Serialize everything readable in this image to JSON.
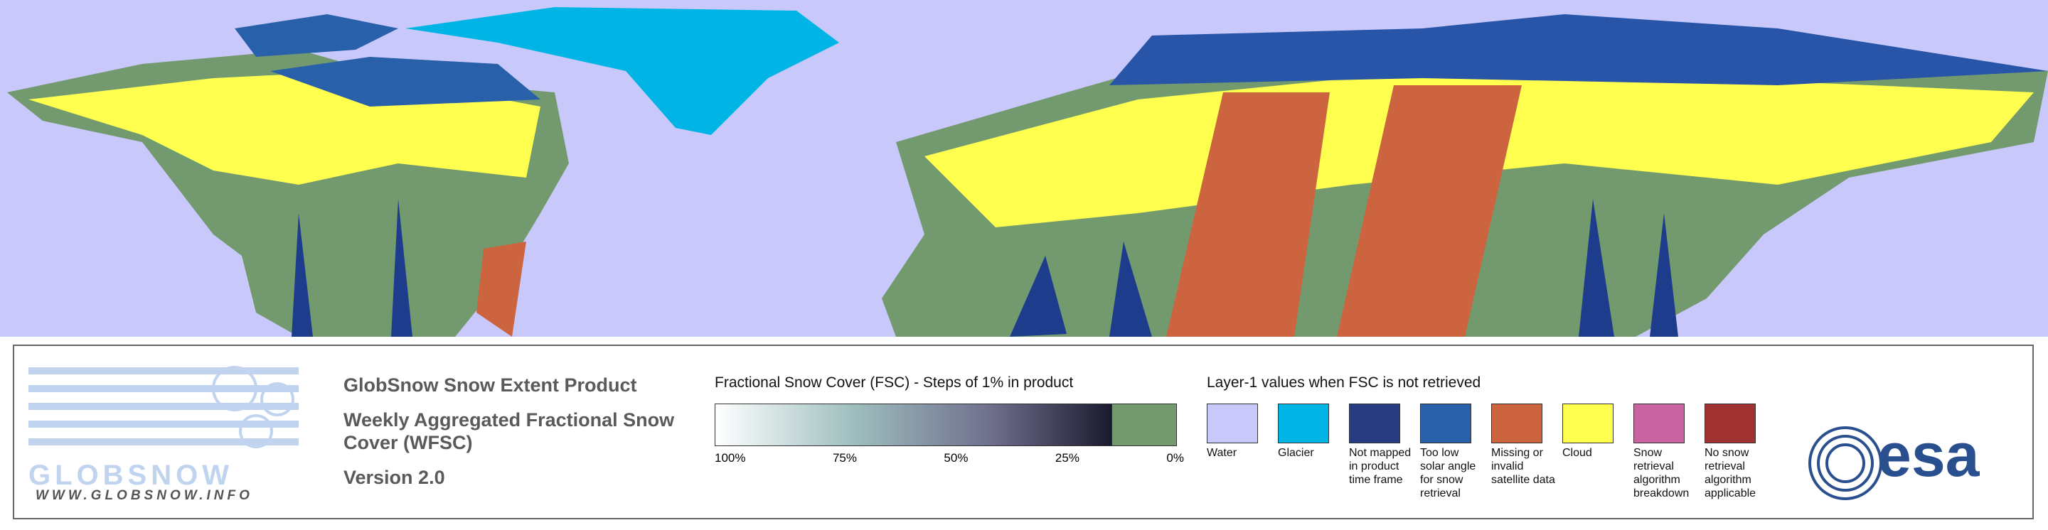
{
  "logo": {
    "name": "GLOBSNOW",
    "url": "WWW.GLOBSNOW.INFO"
  },
  "product": {
    "title": "GlobSnow Snow Extent Product",
    "subtitle": "Weekly Aggregated Fractional Snow Cover (WFSC)",
    "version": "Version 2.0"
  },
  "fsc_scale": {
    "title": "Fractional Snow Cover (FSC) - Steps of 1% in product",
    "ticks": [
      "100%",
      "75%",
      "50%",
      "25%",
      "0%"
    ]
  },
  "layer1": {
    "title": "Layer-1 values when FSC is not retrieved",
    "items": [
      {
        "label": "Water",
        "color": "#c8c8fa"
      },
      {
        "label": "Glacier",
        "color": "#00b4e6"
      },
      {
        "label": "Not mapped in product time frame",
        "color": "#283c82"
      },
      {
        "label": "Too low solar angle for snow retrieval",
        "color": "#2860aa"
      },
      {
        "label": "Missing or invalid satellite data",
        "color": "#cd6440"
      },
      {
        "label": "Cloud",
        "color": "#ffff50"
      },
      {
        "label": "Snow retrieval algorithm breakdown",
        "color": "#c864a0"
      },
      {
        "label": "No snow retrieval algorithm applicable",
        "color": "#a03232"
      }
    ]
  },
  "agency": "esa"
}
